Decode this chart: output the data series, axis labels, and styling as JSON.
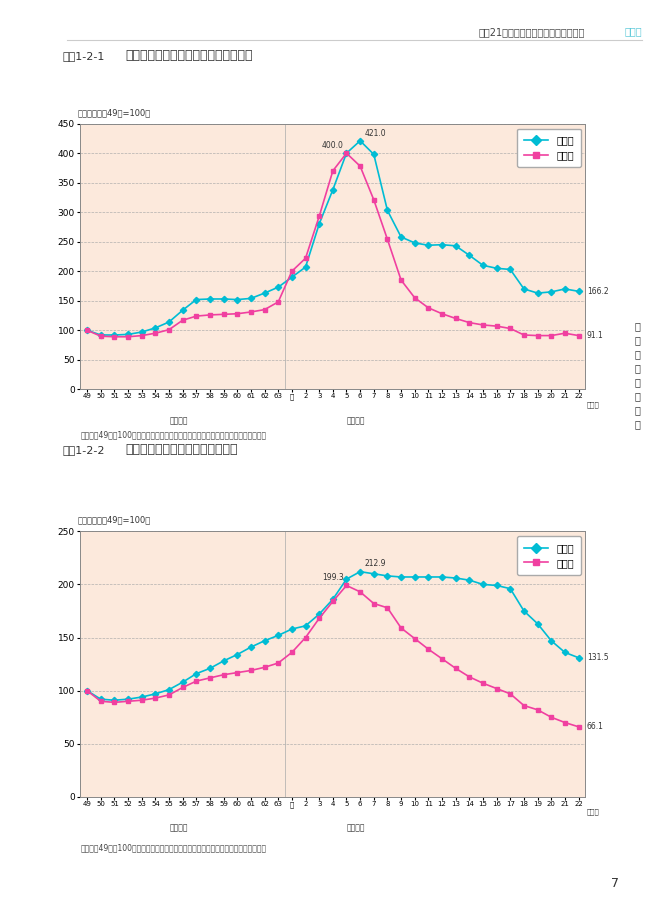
{
  "page_header": "平成21年度の地価・土地取引等の動向",
  "chapter_label": "第１章",
  "page_number": "7",
  "sidebar_text": [
    "土",
    "地",
    "に",
    "関",
    "す",
    "る",
    "動",
    "向"
  ],
  "chart1": {
    "box_label": "図表1-2-1",
    "title": "三大都市圏における地価の累積変動率",
    "subtitle": "（指数：昭和49年=100）",
    "ylim": [
      0,
      450
    ],
    "yticks": [
      0,
      50,
      100,
      150,
      200,
      250,
      300,
      350,
      400,
      450
    ],
    "note": "注：昭和49年を100とし、各年の対前年平均変動率を用いて指数化したものである。",
    "legend_juutaku": "住宅地",
    "legend_shougyou": "商業地",
    "peak_juutaku_label": "421.0",
    "peak_shougyou_label": "400.0",
    "end_juutaku_label": "166.2",
    "end_shougyou_label": "91.1",
    "juutaku": [
      100,
      92,
      92,
      93,
      97,
      104,
      114,
      134,
      152,
      153,
      153,
      152,
      154,
      163,
      173,
      190,
      207,
      280,
      338,
      400,
      421,
      398,
      303,
      258,
      248,
      244,
      245,
      243,
      227,
      210,
      205,
      203,
      170,
      163,
      165,
      170,
      166
    ],
    "shougyou": [
      100,
      90,
      89,
      89,
      91,
      95,
      101,
      117,
      124,
      126,
      127,
      128,
      131,
      135,
      148,
      200,
      222,
      293,
      370,
      400,
      378,
      321,
      254,
      185,
      155,
      138,
      128,
      120,
      113,
      109,
      107,
      103,
      92,
      91,
      91,
      95,
      91
    ]
  },
  "chart2": {
    "box_label": "図表1-2-2",
    "title": "地方圏における地価の累積変動率",
    "subtitle": "（指数：昭和49年=100）",
    "ylim": [
      0,
      250
    ],
    "yticks": [
      0,
      50,
      100,
      150,
      200,
      250
    ],
    "note": "注：昭和49年を100とし、各年の対前年平均変動率を用いて指数化したものである。",
    "legend_juutaku": "住宅地",
    "legend_shougyou": "商業地",
    "peak_juutaku_label": "212.9",
    "peak_shougyou_label": "199.3",
    "end_juutaku_label": "131.5",
    "end_shougyou_label": "66.1",
    "juutaku": [
      100,
      92,
      91,
      92,
      94,
      97,
      101,
      108,
      116,
      121,
      128,
      134,
      141,
      147,
      152,
      158,
      161,
      172,
      186,
      205,
      212,
      210,
      208,
      207,
      207,
      207,
      207,
      206,
      204,
      200,
      199,
      196,
      175,
      163,
      147,
      136,
      131
    ],
    "shougyou": [
      100,
      90,
      89,
      90,
      91,
      93,
      96,
      103,
      109,
      112,
      115,
      117,
      119,
      122,
      126,
      136,
      150,
      168,
      184,
      199,
      193,
      182,
      178,
      159,
      149,
      139,
      130,
      121,
      113,
      107,
      102,
      97,
      86,
      82,
      75,
      70,
      66
    ]
  },
  "panel_bg": "#fce9dc",
  "line_cyan": "#00bcd4",
  "line_pink": "#f040a0",
  "grid_color": "#aaaaaa",
  "showa_label": "（昭和）",
  "heisei_label": "（平成）",
  "nen_label": "（年）",
  "sidebar_color": "#5ac8d8"
}
